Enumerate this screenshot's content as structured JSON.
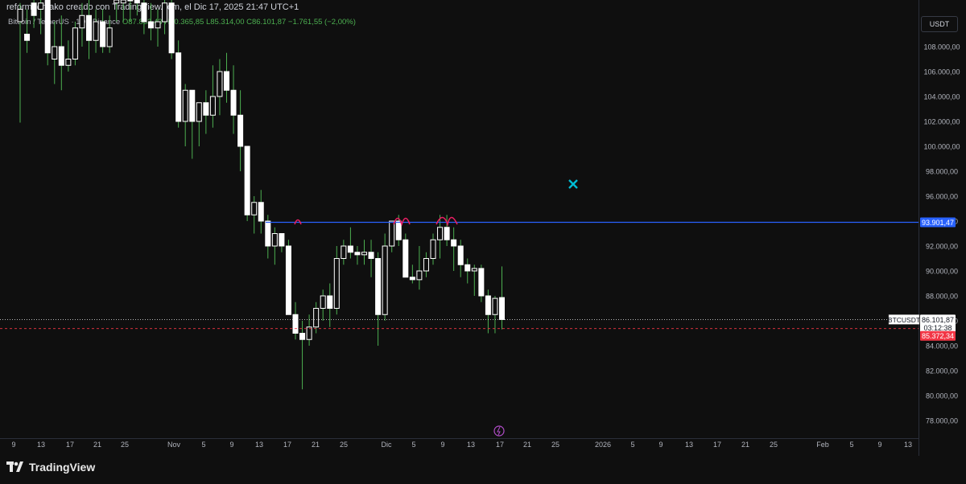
{
  "header": {
    "title": "reformedmako creado con TradingView.com, el Dic 17, 2025 21:47 UTC+1"
  },
  "legend": {
    "symbol": "Bitcoin / TetherUS · 1D · Binance",
    "open": "O87.863,43",
    "high": "H90.365,85",
    "low": "L85.314,00",
    "close": "C86.101,87",
    "change": "−1.761,55 (−2,00%)"
  },
  "currency_button": "USDT",
  "brand": {
    "name": "TradingView"
  },
  "colors": {
    "background": "#0f0f0f",
    "up": "#ffffff",
    "down": "#ffffff",
    "wick": "#4caf50",
    "resistance": "#2962ff",
    "current_price": "#ffffff",
    "last_price_tag": "#f23645",
    "marker": "#e91e63",
    "cross": "#00bcd4"
  },
  "chart_data": {
    "type": "candlestick",
    "title": "",
    "ylim": [
      76500,
      112000
    ],
    "y_ticks": [
      "108.000,00",
      "106.000,00",
      "104.000,00",
      "102.000,00",
      "100.000,00",
      "98.000,00",
      "96.000,00",
      "94.000,00",
      "92.000,00",
      "90.000,00",
      "88.000,00",
      "86.000,00",
      "84.000,00",
      "82.000,00",
      "80.000,00",
      "78.000,00"
    ],
    "x_ticks": [
      "9",
      "13",
      "17",
      "21",
      "25",
      "Nov",
      "5",
      "9",
      "13",
      "17",
      "21",
      "25",
      "Dic",
      "5",
      "9",
      "13",
      "17",
      "21",
      "25",
      "2026",
      "5",
      "9",
      "13",
      "17",
      "21",
      "25",
      "Feb",
      "5",
      "9",
      "13"
    ],
    "resistance": {
      "label": "93.901,47",
      "value": 93901.47
    },
    "current_price": {
      "symbol": "BTCUSDT",
      "label": "86.101,87",
      "countdown": "03:12:38",
      "value": 86101.87
    },
    "low_line": {
      "label": "85.372,34",
      "value": 85372.34
    },
    "candles": [
      {
        "o": 110000,
        "h": 111500,
        "l": 101900,
        "c": 111000
      },
      {
        "o": 109000,
        "h": 111000,
        "l": 107500,
        "c": 108500
      },
      {
        "o": 111500,
        "h": 112500,
        "l": 109500,
        "c": 110500
      },
      {
        "o": 111000,
        "h": 112000,
        "l": 109000,
        "c": 111500
      },
      {
        "o": 112000,
        "h": 113500,
        "l": 106500,
        "c": 107500
      },
      {
        "o": 107000,
        "h": 110000,
        "l": 105000,
        "c": 108000
      },
      {
        "o": 108000,
        "h": 110500,
        "l": 104500,
        "c": 106500
      },
      {
        "o": 106500,
        "h": 108500,
        "l": 106000,
        "c": 107000
      },
      {
        "o": 107000,
        "h": 110000,
        "l": 106500,
        "c": 109500
      },
      {
        "o": 109500,
        "h": 111500,
        "l": 108000,
        "c": 110500
      },
      {
        "o": 110500,
        "h": 112000,
        "l": 107000,
        "c": 108500
      },
      {
        "o": 108500,
        "h": 111000,
        "l": 107500,
        "c": 110000
      },
      {
        "o": 110000,
        "h": 111000,
        "l": 107500,
        "c": 108000
      },
      {
        "o": 108000,
        "h": 110500,
        "l": 107500,
        "c": 109500
      },
      {
        "o": 111500,
        "h": 113000,
        "l": 110000,
        "c": 112000
      },
      {
        "o": 111500,
        "h": 113500,
        "l": 110000,
        "c": 112500
      },
      {
        "o": 112000,
        "h": 114000,
        "l": 110000,
        "c": 113000
      },
      {
        "o": 113000,
        "h": 114000,
        "l": 110500,
        "c": 111500
      },
      {
        "o": 111500,
        "h": 112500,
        "l": 109000,
        "c": 110000
      },
      {
        "o": 110000,
        "h": 111500,
        "l": 108500,
        "c": 109500
      },
      {
        "o": 109500,
        "h": 111000,
        "l": 108000,
        "c": 110000
      },
      {
        "o": 110000,
        "h": 112000,
        "l": 109000,
        "c": 111500
      },
      {
        "o": 111500,
        "h": 112000,
        "l": 107000,
        "c": 107500
      },
      {
        "o": 107500,
        "h": 108500,
        "l": 101500,
        "c": 102000
      },
      {
        "o": 102000,
        "h": 105000,
        "l": 100000,
        "c": 104500
      },
      {
        "o": 104500,
        "h": 104500,
        "l": 99000,
        "c": 102000
      },
      {
        "o": 102000,
        "h": 103500,
        "l": 100000,
        "c": 103500
      },
      {
        "o": 103500,
        "h": 104500,
        "l": 101000,
        "c": 102500
      },
      {
        "o": 102500,
        "h": 106500,
        "l": 101500,
        "c": 104000
      },
      {
        "o": 104000,
        "h": 107000,
        "l": 102500,
        "c": 106000
      },
      {
        "o": 106000,
        "h": 107500,
        "l": 103500,
        "c": 104500
      },
      {
        "o": 104500,
        "h": 106500,
        "l": 101000,
        "c": 102500
      },
      {
        "o": 102500,
        "h": 104500,
        "l": 98000,
        "c": 100000
      },
      {
        "o": 100000,
        "h": 100000,
        "l": 94000,
        "c": 94500
      },
      {
        "o": 94500,
        "h": 96000,
        "l": 93000,
        "c": 95500
      },
      {
        "o": 95500,
        "h": 96500,
        "l": 93000,
        "c": 94000
      },
      {
        "o": 94000,
        "h": 94500,
        "l": 91000,
        "c": 92000
      },
      {
        "o": 92000,
        "h": 93500,
        "l": 90500,
        "c": 93000
      },
      {
        "o": 93000,
        "h": 93000,
        "l": 91500,
        "c": 92000
      },
      {
        "o": 92000,
        "h": 92500,
        "l": 86500,
        "c": 86500
      },
      {
        "o": 86500,
        "h": 87500,
        "l": 84500,
        "c": 85000
      },
      {
        "o": 85000,
        "h": 86000,
        "l": 80500,
        "c": 84500
      },
      {
        "o": 84500,
        "h": 86500,
        "l": 84000,
        "c": 85500
      },
      {
        "o": 85500,
        "h": 87500,
        "l": 85000,
        "c": 87000
      },
      {
        "o": 87000,
        "h": 88500,
        "l": 86000,
        "c": 88000
      },
      {
        "o": 88000,
        "h": 89000,
        "l": 85500,
        "c": 87000
      },
      {
        "o": 87000,
        "h": 92000,
        "l": 86500,
        "c": 91000
      },
      {
        "o": 91000,
        "h": 92500,
        "l": 90500,
        "c": 92000
      },
      {
        "o": 92000,
        "h": 93500,
        "l": 91000,
        "c": 91500
      },
      {
        "o": 91500,
        "h": 92000,
        "l": 90500,
        "c": 91300
      },
      {
        "o": 91300,
        "h": 92500,
        "l": 90500,
        "c": 91500
      },
      {
        "o": 91500,
        "h": 92500,
        "l": 89500,
        "c": 91000
      },
      {
        "o": 91000,
        "h": 91500,
        "l": 84000,
        "c": 86500
      },
      {
        "o": 86500,
        "h": 93000,
        "l": 86000,
        "c": 92000
      },
      {
        "o": 92000,
        "h": 94000,
        "l": 91500,
        "c": 94000
      },
      {
        "o": 94000,
        "h": 94500,
        "l": 92000,
        "c": 92500
      },
      {
        "o": 92500,
        "h": 93000,
        "l": 89500,
        "c": 89500
      },
      {
        "o": 89500,
        "h": 90500,
        "l": 89000,
        "c": 89300
      },
      {
        "o": 89300,
        "h": 92000,
        "l": 88500,
        "c": 90000
      },
      {
        "o": 90000,
        "h": 91500,
        "l": 89500,
        "c": 91000
      },
      {
        "o": 91000,
        "h": 93000,
        "l": 90500,
        "c": 92500
      },
      {
        "o": 92500,
        "h": 94500,
        "l": 91000,
        "c": 93500
      },
      {
        "o": 93500,
        "h": 94500,
        "l": 92000,
        "c": 92500
      },
      {
        "o": 92500,
        "h": 93500,
        "l": 90000,
        "c": 92000
      },
      {
        "o": 92000,
        "h": 92500,
        "l": 89500,
        "c": 90500
      },
      {
        "o": 90500,
        "h": 91000,
        "l": 89000,
        "c": 90000
      },
      {
        "o": 90000,
        "h": 90500,
        "l": 88000,
        "c": 90200
      },
      {
        "o": 90200,
        "h": 90500,
        "l": 87500,
        "c": 88000
      },
      {
        "o": 88000,
        "h": 88500,
        "l": 85000,
        "c": 86500
      },
      {
        "o": 86500,
        "h": 88000,
        "l": 85000,
        "c": 87800
      },
      {
        "o": 87863,
        "h": 90366,
        "l": 85314,
        "c": 86102
      }
    ]
  }
}
